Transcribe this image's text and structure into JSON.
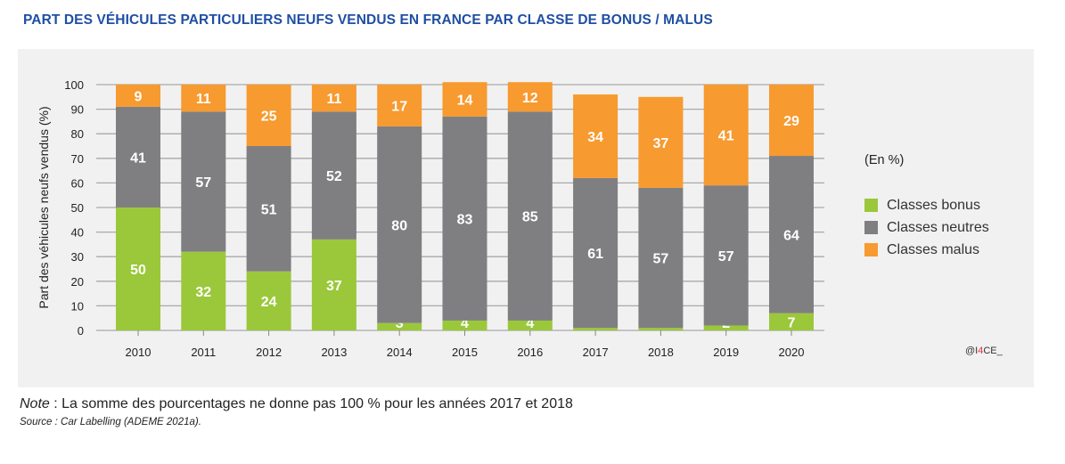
{
  "title": "PART DES VÉHICULES PARTICULIERS NEUFS VENDUS EN FRANCE PAR CLASSE DE BONUS / MALUS",
  "legend": {
    "unit": "(En %)",
    "items": [
      {
        "label": "Classes bonus",
        "color": "#9bc83a"
      },
      {
        "label": "Classes neutres",
        "color": "#7f7f81"
      },
      {
        "label": "Classes malus",
        "color": "#f79a2f"
      }
    ]
  },
  "logo": {
    "prefix": "@I",
    "highlight": "4",
    "suffix": "CE_"
  },
  "note": {
    "label": "Note",
    "text": " : La somme des pourcentages ne donne pas 100 % pour les années 2017 et 2018"
  },
  "source": "Source : Car Labelling (ADEME 2021a).",
  "chart_data": {
    "type": "bar",
    "stacked": true,
    "title": "PART DES VÉHICULES PARTICULIERS NEUFS VENDUS EN FRANCE PAR CLASSE DE BONUS / MALUS",
    "xlabel": "",
    "ylabel": "Part des véhicules neufs vendus (%)",
    "ylim": [
      0,
      100
    ],
    "yticks": [
      0,
      10,
      20,
      30,
      40,
      50,
      60,
      70,
      80,
      90,
      100
    ],
    "grid": true,
    "legend_position": "right",
    "categories": [
      "2010",
      "2011",
      "2012",
      "2013",
      "2014",
      "2015",
      "2016",
      "2017",
      "2018",
      "2019",
      "2020"
    ],
    "series": [
      {
        "name": "Classes bonus",
        "color": "#9bc83a",
        "values": [
          50,
          32,
          24,
          37,
          3,
          4,
          4,
          1,
          1,
          2,
          7
        ]
      },
      {
        "name": "Classes neutres",
        "color": "#7f7f81",
        "values": [
          41,
          57,
          51,
          52,
          80,
          83,
          85,
          61,
          57,
          57,
          64
        ]
      },
      {
        "name": "Classes malus",
        "color": "#f79a2f",
        "values": [
          9,
          11,
          25,
          11,
          17,
          14,
          12,
          34,
          37,
          41,
          29
        ]
      }
    ]
  }
}
